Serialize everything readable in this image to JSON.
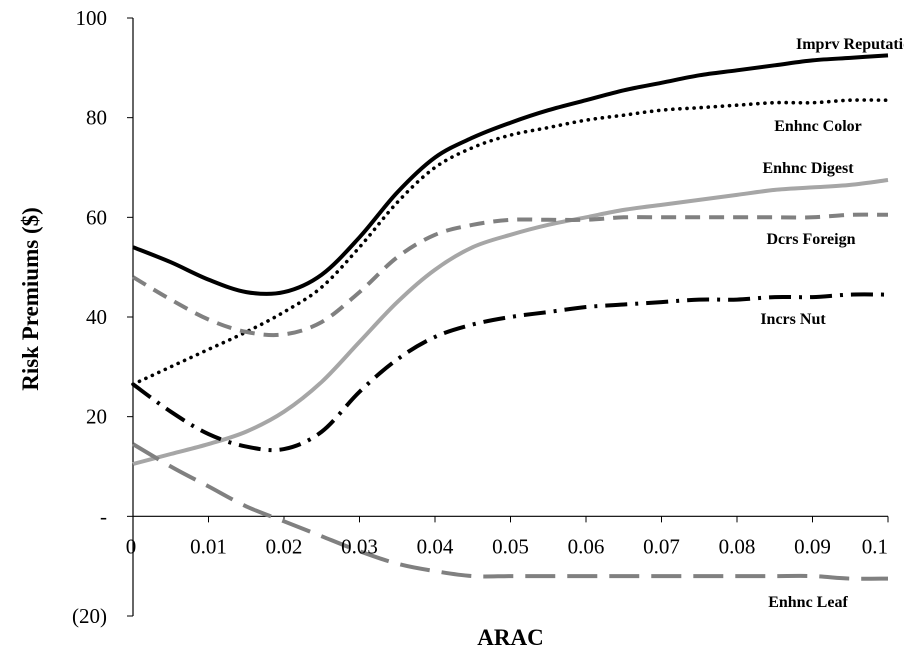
{
  "chart_data": {
    "type": "line",
    "title": "",
    "xlabel": "ARAC",
    "ylabel": "Risk Premiums ($)",
    "xlim": [
      0,
      0.1
    ],
    "ylim": [
      -20,
      100
    ],
    "grid": false,
    "legend": "inline series labels at right",
    "x_ticks": [
      {
        "value": 0,
        "label": "0"
      },
      {
        "value": 0.01,
        "label": "0.01"
      },
      {
        "value": 0.02,
        "label": "0.02"
      },
      {
        "value": 0.03,
        "label": "0.03"
      },
      {
        "value": 0.04,
        "label": "0.04"
      },
      {
        "value": 0.05,
        "label": "0.05"
      },
      {
        "value": 0.06,
        "label": "0.06"
      },
      {
        "value": 0.07,
        "label": "0.07"
      },
      {
        "value": 0.08,
        "label": "0.08"
      },
      {
        "value": 0.09,
        "label": "0.09"
      },
      {
        "value": 0.1,
        "label": "0.1"
      }
    ],
    "y_ticks": [
      {
        "value": -20,
        "label": "(20)"
      },
      {
        "value": 0,
        "label": "-"
      },
      {
        "value": 20,
        "label": "20"
      },
      {
        "value": 40,
        "label": "40"
      },
      {
        "value": 60,
        "label": "60"
      },
      {
        "value": 80,
        "label": "80"
      },
      {
        "value": 100,
        "label": "100"
      }
    ],
    "x": [
      0,
      0.005,
      0.01,
      0.015,
      0.02,
      0.025,
      0.03,
      0.035,
      0.04,
      0.045,
      0.05,
      0.055,
      0.06,
      0.065,
      0.07,
      0.075,
      0.08,
      0.085,
      0.09,
      0.095,
      0.1
    ],
    "series": [
      {
        "name": "Imprv Reputation",
        "color": "#000000",
        "dash": "solid",
        "values": [
          54,
          51,
          47.5,
          45,
          45,
          48.5,
          56,
          65,
          72,
          76,
          79,
          81.5,
          83.5,
          85.5,
          87,
          88.5,
          89.5,
          90.5,
          91.5,
          92,
          92.5
        ]
      },
      {
        "name": "Enhnc Color",
        "color": "#000000",
        "dash": "dotted",
        "values": [
          26.5,
          30,
          33.5,
          37,
          41,
          46,
          54,
          63,
          70,
          74,
          76.5,
          78,
          79.5,
          80.5,
          81.5,
          82,
          82.5,
          83,
          83,
          83.5,
          83.5
        ]
      },
      {
        "name": "Enhnc Digest",
        "color": "#a6a6a6",
        "dash": "solid",
        "values": [
          10.5,
          12.5,
          14.5,
          17,
          21,
          27,
          35,
          43,
          49.5,
          54,
          56.5,
          58.5,
          60,
          61.5,
          62.5,
          63.5,
          64.5,
          65.5,
          66,
          66.5,
          67.5
        ]
      },
      {
        "name": "Dcrs Foreign",
        "color": "#808080",
        "dash": "dashed",
        "values": [
          48,
          43.5,
          39.5,
          37,
          36.5,
          39,
          45,
          52,
          56.5,
          58.5,
          59.5,
          59.5,
          59.5,
          60,
          60,
          60,
          60,
          60,
          60,
          60.5,
          60.5
        ]
      },
      {
        "name": "Incrs Nut",
        "color": "#000000",
        "dash": "dashdot",
        "values": [
          26.5,
          21,
          16.5,
          14,
          13.5,
          17,
          25,
          31.5,
          36,
          38.5,
          40,
          41,
          42,
          42.5,
          43,
          43.5,
          43.5,
          44,
          44,
          44.5,
          44.5
        ]
      },
      {
        "name": "Enhnc Leaf",
        "color": "#808080",
        "dash": "longdash",
        "values": [
          14.5,
          10,
          6,
          2,
          -1,
          -4,
          -7,
          -9.5,
          -11,
          -12,
          -12,
          -12,
          -12,
          -12,
          -12,
          -12,
          -12,
          -12,
          -12,
          -12.5,
          -12.5
        ]
      }
    ]
  }
}
